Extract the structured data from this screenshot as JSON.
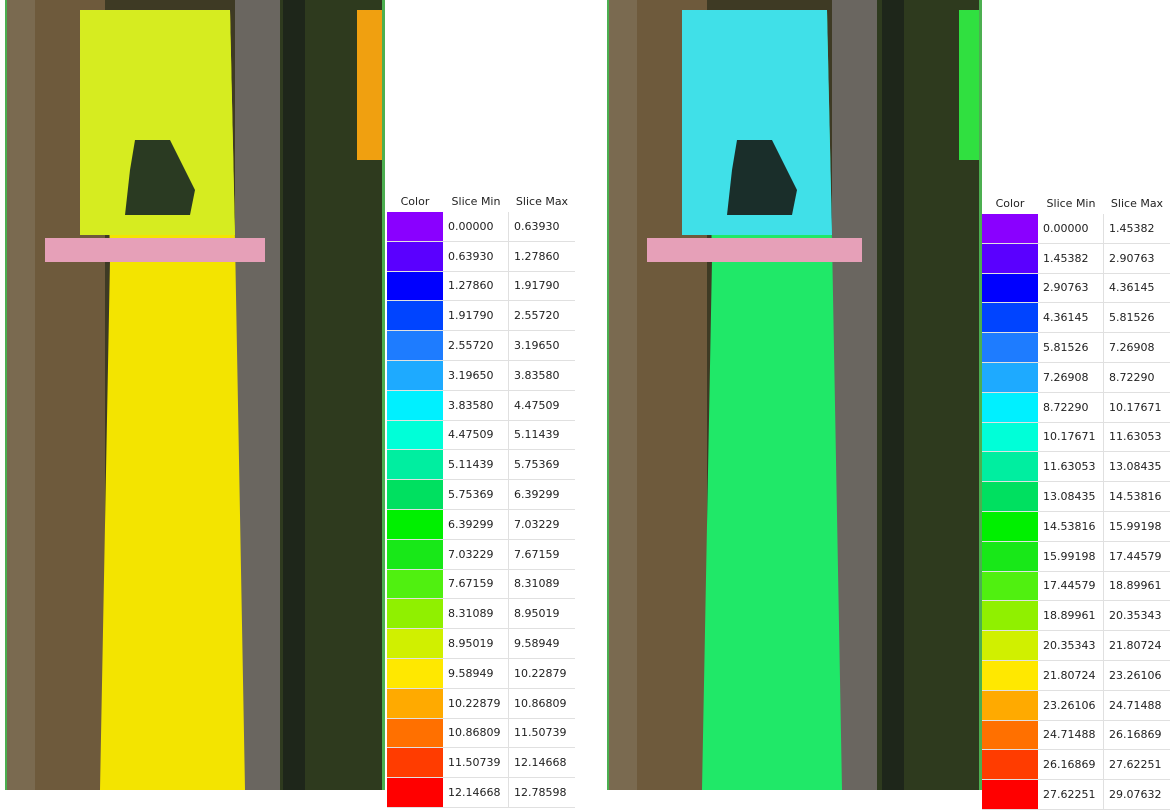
{
  "panels": [
    {
      "table": {
        "headers": [
          "Color",
          "Slice Min",
          "Slice Max"
        ],
        "rows": [
          {
            "color": "#8a00ff",
            "min": "0.00000",
            "max": "0.63930"
          },
          {
            "color": "#5a00ff",
            "min": "0.63930",
            "max": "1.27860"
          },
          {
            "color": "#0000ff",
            "min": "1.27860",
            "max": "1.91790"
          },
          {
            "color": "#0044ff",
            "min": "1.91790",
            "max": "2.55720"
          },
          {
            "color": "#1e7cff",
            "min": "2.55720",
            "max": "3.19650"
          },
          {
            "color": "#1eaaff",
            "min": "3.19650",
            "max": "3.83580"
          },
          {
            "color": "#00f0ff",
            "min": "3.83580",
            "max": "4.47509"
          },
          {
            "color": "#00ffd8",
            "min": "4.47509",
            "max": "5.11439"
          },
          {
            "color": "#00eea0",
            "min": "5.11439",
            "max": "5.75369"
          },
          {
            "color": "#00e060",
            "min": "5.75369",
            "max": "6.39299"
          },
          {
            "color": "#00f000",
            "min": "6.39299",
            "max": "7.03229"
          },
          {
            "color": "#18e818",
            "min": "7.03229",
            "max": "7.67159"
          },
          {
            "color": "#50f010",
            "min": "7.67159",
            "max": "8.31089"
          },
          {
            "color": "#90f000",
            "min": "8.31089",
            "max": "8.95019"
          },
          {
            "color": "#d0f000",
            "min": "8.95019",
            "max": "9.58949"
          },
          {
            "color": "#ffe800",
            "min": "9.58949",
            "max": "10.22879"
          },
          {
            "color": "#ffaa00",
            "min": "10.22879",
            "max": "10.86809"
          },
          {
            "color": "#ff7000",
            "min": "10.86809",
            "max": "11.50739"
          },
          {
            "color": "#ff3c00",
            "min": "11.50739",
            "max": "12.14668"
          },
          {
            "color": "#ff0000",
            "min": "12.14668",
            "max": "12.78598"
          }
        ]
      }
    },
    {
      "table": {
        "headers": [
          "Color",
          "Slice Min",
          "Slice Max"
        ],
        "rows": [
          {
            "color": "#8a00ff",
            "min": "0.00000",
            "max": "1.45382"
          },
          {
            "color": "#5a00ff",
            "min": "1.45382",
            "max": "2.90763"
          },
          {
            "color": "#0000ff",
            "min": "2.90763",
            "max": "4.36145"
          },
          {
            "color": "#0044ff",
            "min": "4.36145",
            "max": "5.81526"
          },
          {
            "color": "#1e7cff",
            "min": "5.81526",
            "max": "7.26908"
          },
          {
            "color": "#1eaaff",
            "min": "7.26908",
            "max": "8.72290"
          },
          {
            "color": "#00f0ff",
            "min": "8.72290",
            "max": "10.17671"
          },
          {
            "color": "#00ffd8",
            "min": "10.17671",
            "max": "11.63053"
          },
          {
            "color": "#00eea0",
            "min": "11.63053",
            "max": "13.08435"
          },
          {
            "color": "#00e060",
            "min": "13.08435",
            "max": "14.53816"
          },
          {
            "color": "#00f000",
            "min": "14.53816",
            "max": "15.99198"
          },
          {
            "color": "#18e818",
            "min": "15.99198",
            "max": "17.44579"
          },
          {
            "color": "#50f010",
            "min": "17.44579",
            "max": "18.89961"
          },
          {
            "color": "#90f000",
            "min": "18.89961",
            "max": "20.35343"
          },
          {
            "color": "#d0f000",
            "min": "20.35343",
            "max": "21.80724"
          },
          {
            "color": "#ffe800",
            "min": "21.80724",
            "max": "23.26106"
          },
          {
            "color": "#ffaa00",
            "min": "23.26106",
            "max": "24.71488"
          },
          {
            "color": "#ff7000",
            "min": "24.71488",
            "max": "26.16869"
          },
          {
            "color": "#ff3c00",
            "min": "26.16869",
            "max": "27.62251"
          },
          {
            "color": "#ff0000",
            "min": "27.62251",
            "max": "29.07632"
          }
        ]
      }
    }
  ]
}
